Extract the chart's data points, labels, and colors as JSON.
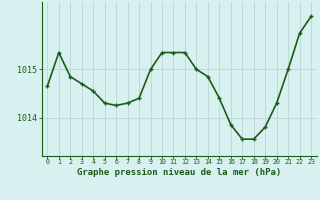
{
  "x": [
    0,
    1,
    2,
    3,
    4,
    5,
    6,
    7,
    8,
    9,
    10,
    11,
    12,
    13,
    14,
    15,
    16,
    17,
    18,
    19,
    20,
    21,
    22,
    23
  ],
  "y": [
    1014.65,
    1015.35,
    1014.85,
    1014.7,
    1014.55,
    1014.3,
    1014.25,
    1014.3,
    1014.4,
    1015.0,
    1015.35,
    1015.35,
    1015.35,
    1015.0,
    1014.85,
    1014.4,
    1013.85,
    1013.55,
    1013.55,
    1013.8,
    1014.3,
    1015.0,
    1015.75,
    1016.1
  ],
  "line_color": "#1a5c1a",
  "marker_color": "#1a5c1a",
  "bg_color": "#d8f0f0",
  "grid_color": "#c0d8d8",
  "xlabel": "Graphe pression niveau de la mer (hPa)",
  "yticks": [
    1014,
    1015
  ],
  "xlim": [
    -0.5,
    23.5
  ],
  "ylim": [
    1013.2,
    1016.4
  ],
  "line_width": 1.2,
  "marker_size": 3.5,
  "tick_color": "#1a5c1a",
  "label_color": "#1a5c1a",
  "xtick_fontsize": 4.8,
  "ytick_fontsize": 6.0,
  "xlabel_fontsize": 6.5
}
